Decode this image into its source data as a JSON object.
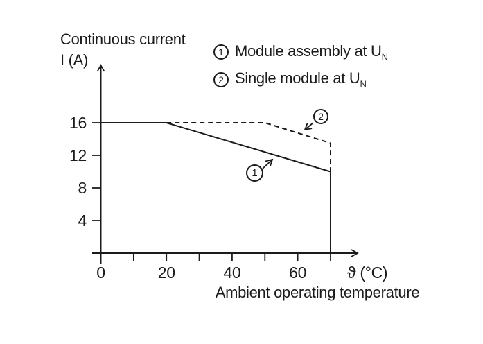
{
  "figure": {
    "y_axis_title_line1": "Continuous current",
    "y_axis_title_line2": "I (A)",
    "x_axis_symbol": "ϑ (°C)",
    "x_axis_caption": "Ambient operating temperature"
  },
  "legend": {
    "items": [
      {
        "num": "1",
        "label": "Module assembly at U",
        "subscript": "N"
      },
      {
        "num": "2",
        "label": "Single module at U",
        "subscript": "N"
      }
    ]
  },
  "colors": {
    "ink": "#1b1b1b",
    "background": "#ffffff"
  },
  "chart_data": {
    "type": "line",
    "title": "Derating curve: continuous current vs ambient operating temperature",
    "xlabel": "Ambient operating temperature ϑ (°C)",
    "ylabel": "Continuous current I (A)",
    "xlim": [
      0,
      79
    ],
    "ylim": [
      0,
      24
    ],
    "grid": false,
    "legend_position": "top-right",
    "x_minor_ticks": [
      10,
      20,
      30,
      40,
      50,
      60,
      70
    ],
    "x_tick_labels": [
      {
        "value": 0,
        "label": "0"
      },
      {
        "value": 20,
        "label": "20"
      },
      {
        "value": 40,
        "label": "40"
      },
      {
        "value": 60,
        "label": "60"
      }
    ],
    "y_tick_labels": [
      {
        "value": 4,
        "label": "4"
      },
      {
        "value": 8,
        "label": "8"
      },
      {
        "value": 12,
        "label": "12"
      },
      {
        "value": 16,
        "label": "16"
      }
    ],
    "series": [
      {
        "name": "1",
        "label": "Module assembly at UN",
        "line_style": "solid",
        "points": [
          [
            0,
            16
          ],
          [
            20,
            16
          ],
          [
            70,
            10
          ],
          [
            70,
            0
          ]
        ]
      },
      {
        "name": "2",
        "label": "Single module at UN",
        "line_style": "dashed",
        "points": [
          [
            20,
            16
          ],
          [
            50,
            16
          ],
          [
            70,
            13.5
          ],
          [
            70,
            10
          ]
        ]
      }
    ]
  }
}
